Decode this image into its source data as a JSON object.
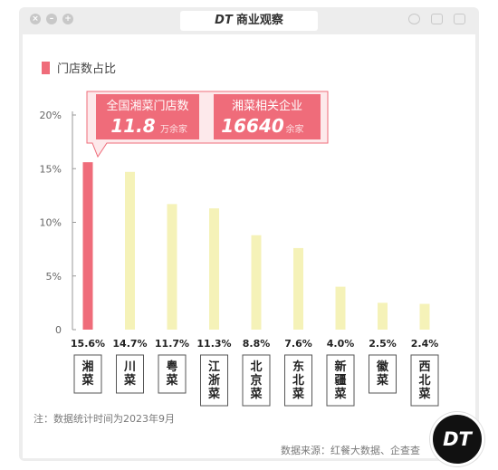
{
  "window": {
    "brand": "DT",
    "title": "商业观察"
  },
  "legend": {
    "label": "门店数占比",
    "color": "#ef6c7a"
  },
  "callouts": [
    {
      "title": "全国湘菜门店数",
      "value": "11.8",
      "unit": "万余家"
    },
    {
      "title": "湘菜相关企业",
      "value": "16640",
      "unit": "余家"
    }
  ],
  "chart_data": {
    "type": "bar",
    "categories": [
      "湘菜",
      "川菜",
      "粤菜",
      "江浙菜",
      "北京菜",
      "东北菜",
      "新疆菜",
      "徽菜",
      "西北菜"
    ],
    "values": [
      15.6,
      14.7,
      11.7,
      11.3,
      8.8,
      7.6,
      4.0,
      2.5,
      2.4
    ],
    "value_labels": [
      "15.6%",
      "14.7%",
      "11.7%",
      "11.3%",
      "8.8%",
      "7.6%",
      "4.0%",
      "2.5%",
      "2.4%"
    ],
    "yticks": [
      0,
      5,
      10,
      15,
      20
    ],
    "ytick_labels": [
      "0",
      "5%",
      "10%",
      "15%",
      "20%"
    ],
    "ylim": [
      0,
      20
    ],
    "highlight_color": "#ef6c7a",
    "bar_color": "#f5f2b8",
    "grid": false,
    "legend_position": "top-left"
  },
  "footnote": "注：数据统计时间为2023年9月",
  "source": "数据来源：红餐大数据、企查查",
  "badge": "DT"
}
